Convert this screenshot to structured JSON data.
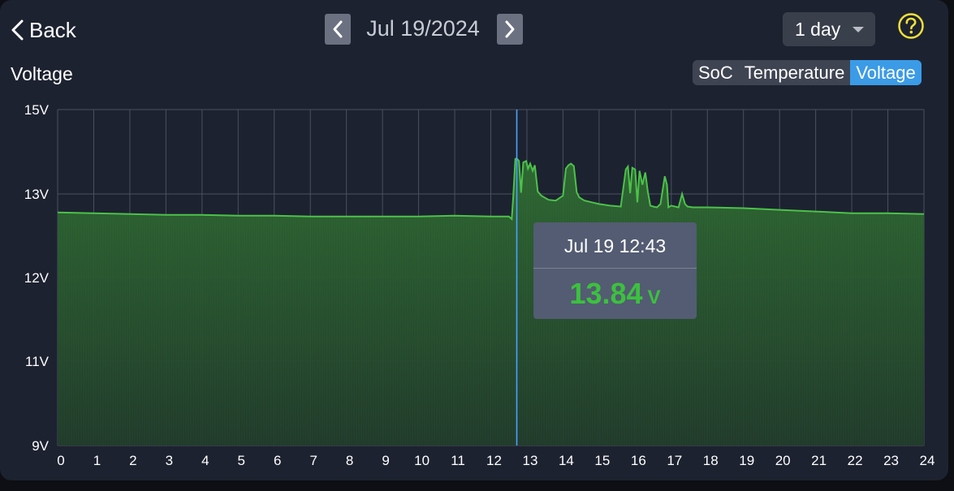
{
  "header": {
    "back_label": "Back",
    "date": "Jul 19/2024",
    "range": "1 day"
  },
  "panel": {
    "title": "Voltage",
    "tabs": [
      {
        "label": "SoC",
        "active": false
      },
      {
        "label": "Temperature",
        "active": false
      },
      {
        "label": "Voltage",
        "active": true
      }
    ]
  },
  "tooltip": {
    "time": "Jul 19 12:43",
    "value": "13.84",
    "unit": "V"
  },
  "colors": {
    "line": "#4cc24a",
    "cursor": "#4aa3ff",
    "active_tab": "#3b9be6",
    "help_icon": "#f0e03a"
  },
  "chart_data": {
    "type": "area",
    "xlabel": "",
    "ylabel": "",
    "xlim": [
      0,
      24
    ],
    "y_ticks": [
      {
        "value": 9,
        "label": "9V"
      },
      {
        "value": 11,
        "label": "11V"
      },
      {
        "value": 12,
        "label": "12V"
      },
      {
        "value": 13,
        "label": "13V"
      },
      {
        "value": 15,
        "label": "15V"
      }
    ],
    "x_ticks": [
      "0",
      "1",
      "2",
      "3",
      "4",
      "5",
      "6",
      "7",
      "8",
      "9",
      "10",
      "11",
      "12",
      "13",
      "14",
      "15",
      "16",
      "17",
      "18",
      "19",
      "20",
      "21",
      "22",
      "23",
      "24"
    ],
    "cursor_x": 12.72,
    "grid": true,
    "series": [
      {
        "x": [
          0,
          1,
          2,
          3,
          4,
          5,
          6,
          7,
          8,
          9,
          10,
          11,
          12,
          12.5,
          12.58,
          12.62,
          12.68,
          12.72,
          12.78,
          12.84,
          12.9,
          12.98,
          13.03,
          13.09,
          13.16,
          13.22,
          13.3,
          13.4,
          13.6,
          13.8,
          14.0,
          14.08,
          14.15,
          14.22,
          14.3,
          14.38,
          14.45,
          14.52,
          14.6,
          14.8,
          15.0,
          15.3,
          15.6,
          15.74,
          15.8,
          15.86,
          15.92,
          16.0,
          16.06,
          16.12,
          16.2,
          16.28,
          16.35,
          16.42,
          16.5,
          16.6,
          16.7,
          16.82,
          16.88,
          16.92,
          17.0,
          17.2,
          17.3,
          17.38,
          17.45,
          17.6,
          18,
          19,
          20,
          21,
          22,
          23,
          24
        ],
        "y": [
          12.78,
          12.77,
          12.76,
          12.75,
          12.75,
          12.74,
          12.74,
          12.73,
          12.73,
          12.73,
          12.73,
          12.74,
          12.73,
          12.73,
          12.7,
          12.96,
          13.83,
          13.84,
          13.78,
          13.03,
          13.75,
          13.78,
          13.6,
          13.72,
          13.55,
          13.68,
          13.06,
          12.98,
          12.93,
          12.92,
          12.98,
          13.6,
          13.68,
          13.72,
          13.66,
          13.04,
          12.96,
          12.94,
          12.92,
          12.9,
          12.88,
          12.86,
          12.85,
          13.58,
          13.65,
          13.02,
          13.62,
          13.58,
          12.9,
          13.55,
          13.22,
          13.51,
          13.05,
          12.86,
          12.85,
          12.84,
          12.88,
          13.42,
          13.22,
          12.84,
          12.86,
          12.84,
          13.0,
          12.88,
          12.85,
          12.84,
          12.84,
          12.83,
          12.81,
          12.79,
          12.77,
          12.77,
          12.76
        ]
      }
    ]
  }
}
